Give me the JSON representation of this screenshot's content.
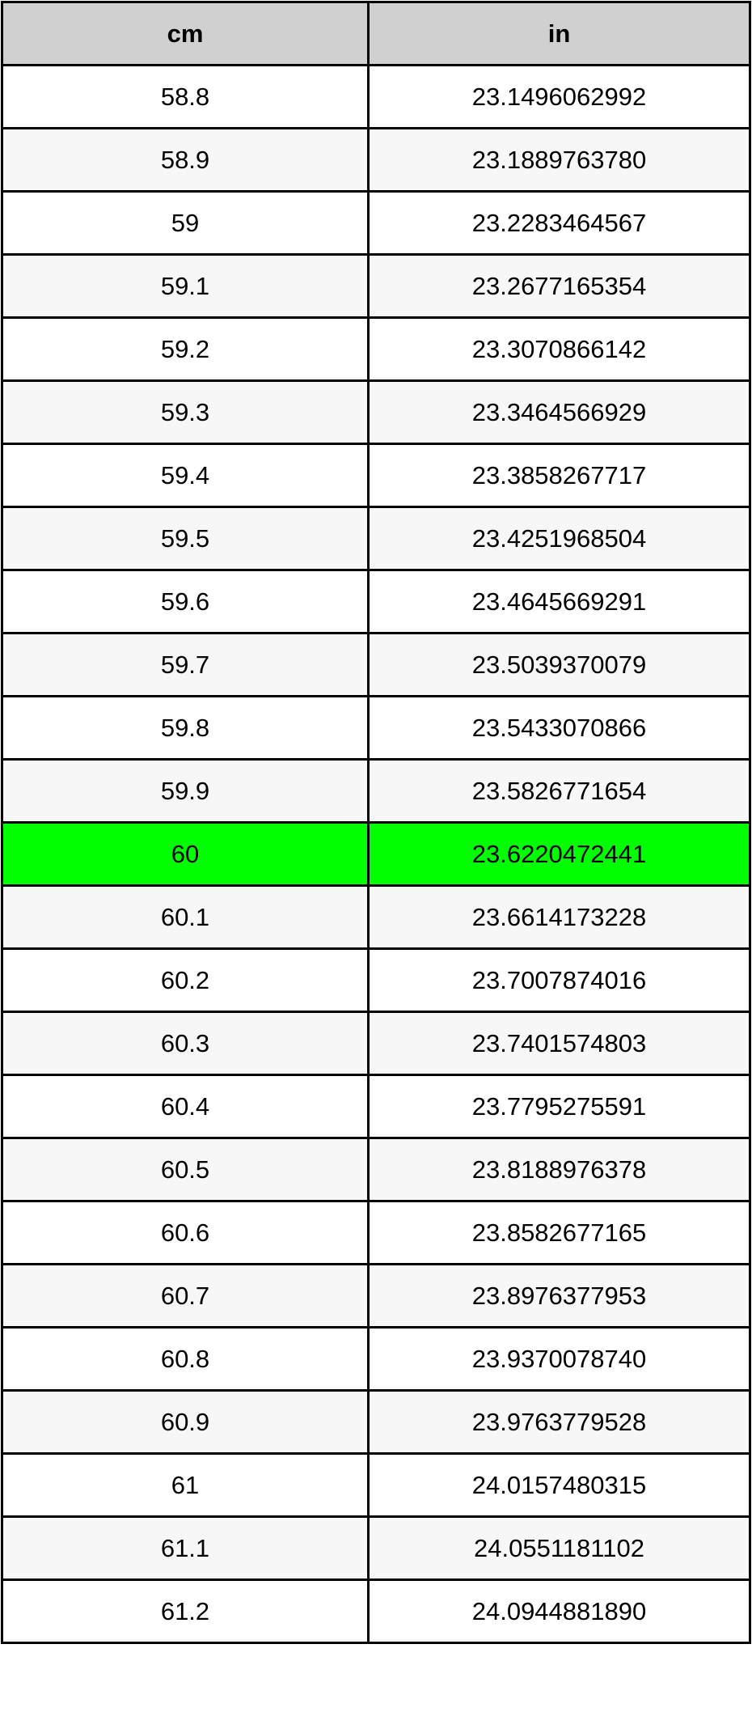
{
  "table": {
    "headers": [
      "cm",
      "in"
    ],
    "highlight_color": "#00ff00",
    "highlighted_cm": "60",
    "rows": [
      [
        "58.8",
        "23.1496062992"
      ],
      [
        "58.9",
        "23.1889763780"
      ],
      [
        "59",
        "23.2283464567"
      ],
      [
        "59.1",
        "23.2677165354"
      ],
      [
        "59.2",
        "23.3070866142"
      ],
      [
        "59.3",
        "23.3464566929"
      ],
      [
        "59.4",
        "23.3858267717"
      ],
      [
        "59.5",
        "23.4251968504"
      ],
      [
        "59.6",
        "23.4645669291"
      ],
      [
        "59.7",
        "23.5039370079"
      ],
      [
        "59.8",
        "23.5433070866"
      ],
      [
        "59.9",
        "23.5826771654"
      ],
      [
        "60",
        "23.6220472441"
      ],
      [
        "60.1",
        "23.6614173228"
      ],
      [
        "60.2",
        "23.7007874016"
      ],
      [
        "60.3",
        "23.7401574803"
      ],
      [
        "60.4",
        "23.7795275591"
      ],
      [
        "60.5",
        "23.8188976378"
      ],
      [
        "60.6",
        "23.8582677165"
      ],
      [
        "60.7",
        "23.8976377953"
      ],
      [
        "60.8",
        "23.9370078740"
      ],
      [
        "60.9",
        "23.9763779528"
      ],
      [
        "61",
        "24.0157480315"
      ],
      [
        "61.1",
        "24.0551181102"
      ],
      [
        "61.2",
        "24.0944881890"
      ]
    ]
  }
}
